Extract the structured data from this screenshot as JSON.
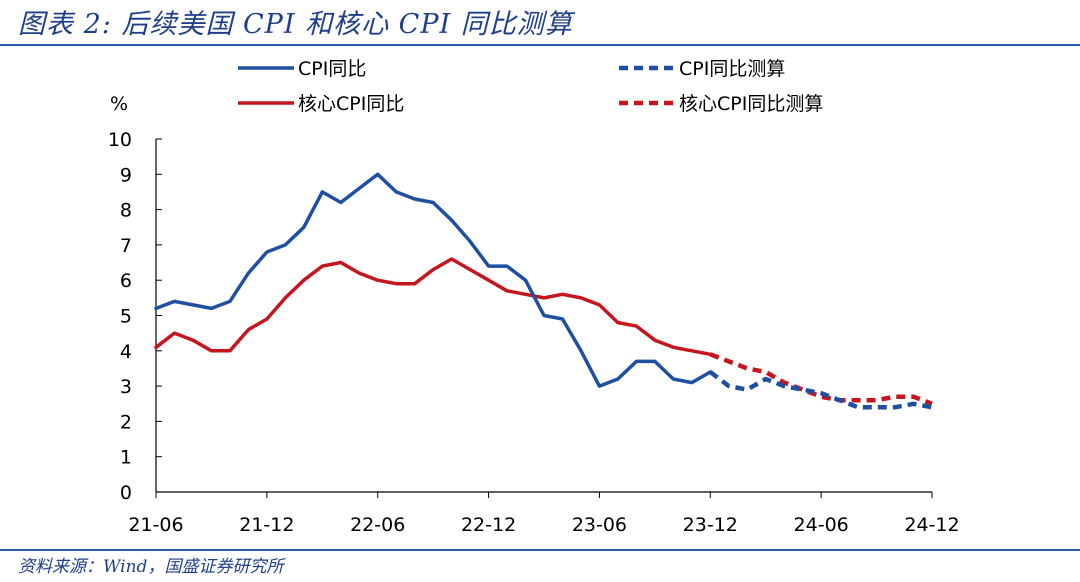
{
  "header": {
    "title": "图表 2: 后续美国 CPI 和核心 CPI 同比测算"
  },
  "footer": {
    "source": "资料来源：Wind，国盛证券研究所"
  },
  "colors": {
    "blue": "#1f4fa0",
    "red": "#c4161c",
    "rule": "#2a5aa8"
  },
  "chart_data": {
    "type": "line",
    "ylabel": "%",
    "ylim": [
      0,
      10
    ],
    "yticks": [
      "0",
      "1",
      "2",
      "3",
      "4",
      "5",
      "6",
      "7",
      "8",
      "9",
      "10"
    ],
    "xlim": [
      "2021-06",
      "2024-12"
    ],
    "xticks": [
      "21-06",
      "21-12",
      "22-06",
      "22-12",
      "23-06",
      "23-12",
      "24-06",
      "24-12"
    ],
    "grid": false,
    "legend_position": "top",
    "series": [
      {
        "name": "CPI同比",
        "color": "#1f4fa0",
        "style": "solid",
        "x": [
          "2021-06",
          "2021-07",
          "2021-08",
          "2021-09",
          "2021-10",
          "2021-11",
          "2021-12",
          "2022-01",
          "2022-02",
          "2022-03",
          "2022-04",
          "2022-05",
          "2022-06",
          "2022-07",
          "2022-08",
          "2022-09",
          "2022-10",
          "2022-11",
          "2022-12",
          "2023-01",
          "2023-02",
          "2023-03",
          "2023-04",
          "2023-05",
          "2023-06",
          "2023-07",
          "2023-08",
          "2023-09",
          "2023-10",
          "2023-11",
          "2023-12"
        ],
        "values": [
          5.2,
          5.4,
          5.3,
          5.2,
          5.4,
          6.2,
          6.8,
          7.0,
          7.5,
          8.5,
          8.2,
          8.6,
          9.0,
          8.5,
          8.3,
          8.2,
          7.7,
          7.1,
          6.4,
          6.4,
          6.0,
          5.0,
          4.9,
          4.0,
          3.0,
          3.2,
          3.7,
          3.7,
          3.2,
          3.1,
          3.4
        ]
      },
      {
        "name": "核心CPI同比",
        "color": "#c4161c",
        "style": "solid",
        "x": [
          "2021-06",
          "2021-07",
          "2021-08",
          "2021-09",
          "2021-10",
          "2021-11",
          "2021-12",
          "2022-01",
          "2022-02",
          "2022-03",
          "2022-04",
          "2022-05",
          "2022-06",
          "2022-07",
          "2022-08",
          "2022-09",
          "2022-10",
          "2022-11",
          "2022-12",
          "2023-01",
          "2023-02",
          "2023-03",
          "2023-04",
          "2023-05",
          "2023-06",
          "2023-07",
          "2023-08",
          "2023-09",
          "2023-10",
          "2023-11",
          "2023-12"
        ],
        "values": [
          4.1,
          4.5,
          4.3,
          4.0,
          4.0,
          4.6,
          4.9,
          5.5,
          6.0,
          6.4,
          6.5,
          6.2,
          6.0,
          5.9,
          5.9,
          6.3,
          6.6,
          6.3,
          6.0,
          5.7,
          5.6,
          5.5,
          5.6,
          5.5,
          5.3,
          4.8,
          4.7,
          4.3,
          4.1,
          4.0,
          3.9
        ]
      },
      {
        "name": "CPI同比测算",
        "color": "#1f4fa0",
        "style": "dashed",
        "x": [
          "2023-12",
          "2024-01",
          "2024-02",
          "2024-03",
          "2024-04",
          "2024-05",
          "2024-06",
          "2024-07",
          "2024-08",
          "2024-09",
          "2024-10",
          "2024-11",
          "2024-12"
        ],
        "values": [
          3.4,
          3.0,
          2.9,
          3.2,
          3.0,
          2.9,
          2.8,
          2.6,
          2.4,
          2.4,
          2.4,
          2.5,
          2.4
        ]
      },
      {
        "name": "核心CPI同比测算",
        "color": "#c4161c",
        "style": "dashed",
        "x": [
          "2023-12",
          "2024-01",
          "2024-02",
          "2024-03",
          "2024-04",
          "2024-05",
          "2024-06",
          "2024-07",
          "2024-08",
          "2024-09",
          "2024-10",
          "2024-11",
          "2024-12"
        ],
        "values": [
          3.9,
          3.7,
          3.5,
          3.4,
          3.1,
          2.9,
          2.7,
          2.6,
          2.6,
          2.6,
          2.7,
          2.7,
          2.5
        ]
      }
    ]
  }
}
